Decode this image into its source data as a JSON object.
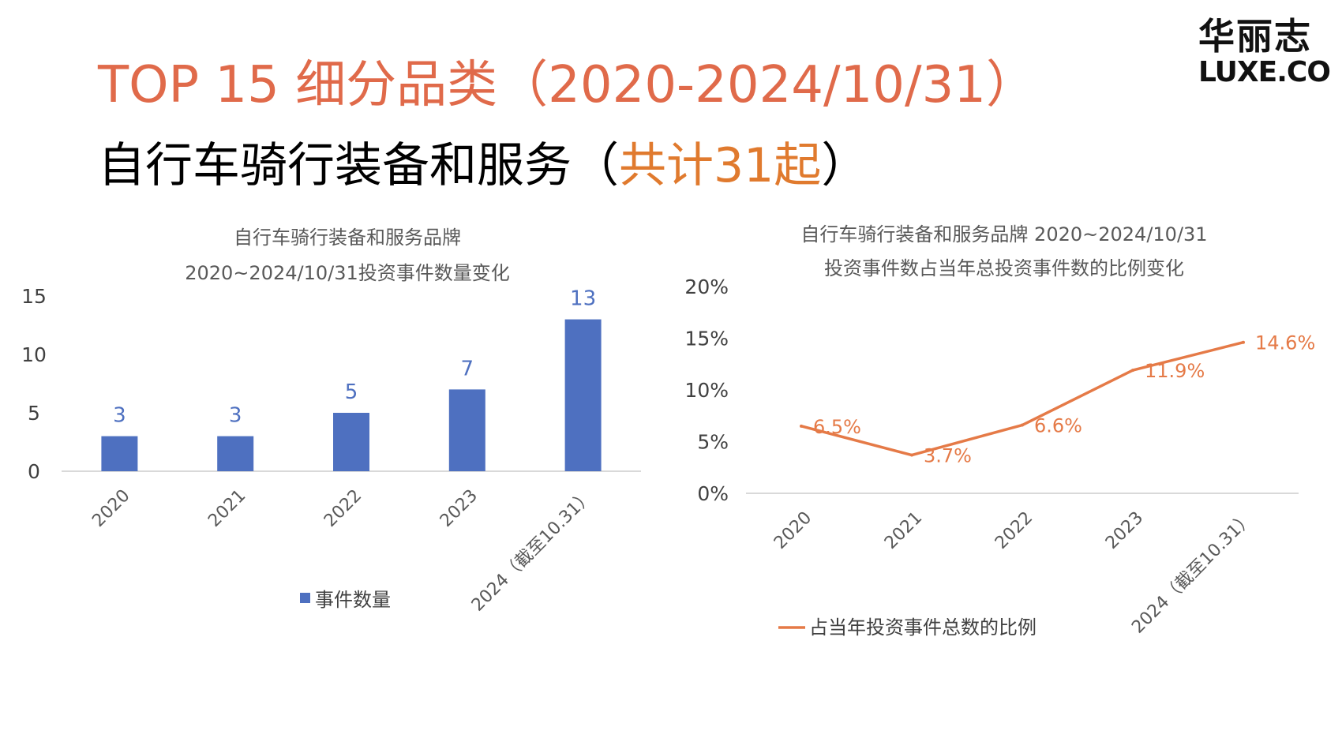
{
  "header": {
    "title": "TOP 15 细分品类（2020-2024/10/31）",
    "subtitle_prefix": "自行车骑行装备和服务（",
    "subtitle_highlight": "共计31起",
    "subtitle_suffix": "）"
  },
  "logo": {
    "line1": "华丽志",
    "line2": "LUXE.CO"
  },
  "colors": {
    "title": "#E06A4A",
    "highlight": "#E07A2E",
    "bar": "#4E70C0",
    "line": "#E57A47"
  },
  "chart_data": [
    {
      "type": "bar",
      "title_lines": [
        "自行车骑行装备和服务品牌",
        "2020~2024/10/31投资事件数量变化"
      ],
      "categories": [
        "2020",
        "2021",
        "2022",
        "2023",
        "2024（截至10.31）"
      ],
      "series": [
        {
          "name": "事件数量",
          "values": [
            3,
            3,
            5,
            7,
            13
          ]
        }
      ],
      "ylim": [
        0,
        15
      ],
      "yticks": [
        0,
        5,
        10,
        15
      ],
      "ytick_labels": [
        "0",
        "5",
        "10",
        "15"
      ],
      "data_labels": [
        "3",
        "3",
        "5",
        "7",
        "13"
      ],
      "legend": "bottom",
      "grid": false
    },
    {
      "type": "line",
      "title_lines": [
        "自行车骑行装备和服务品牌 2020~2024/10/31",
        "投资事件数占当年总投资事件数的比例变化"
      ],
      "categories": [
        "2020",
        "2021",
        "2022",
        "2023",
        "2024（截至10.31）"
      ],
      "series": [
        {
          "name": "占当年投资事件总数的比例",
          "values": [
            6.5,
            3.7,
            6.6,
            11.9,
            14.6
          ]
        }
      ],
      "ylim": [
        0,
        20
      ],
      "yticks": [
        0,
        5,
        10,
        15,
        20
      ],
      "ytick_labels": [
        "0%",
        "5%",
        "10%",
        "15%",
        "20%"
      ],
      "data_labels": [
        "6.5%",
        "3.7%",
        "6.6%",
        "11.9%",
        "14.6%"
      ],
      "legend": "bottom",
      "grid": false
    }
  ]
}
